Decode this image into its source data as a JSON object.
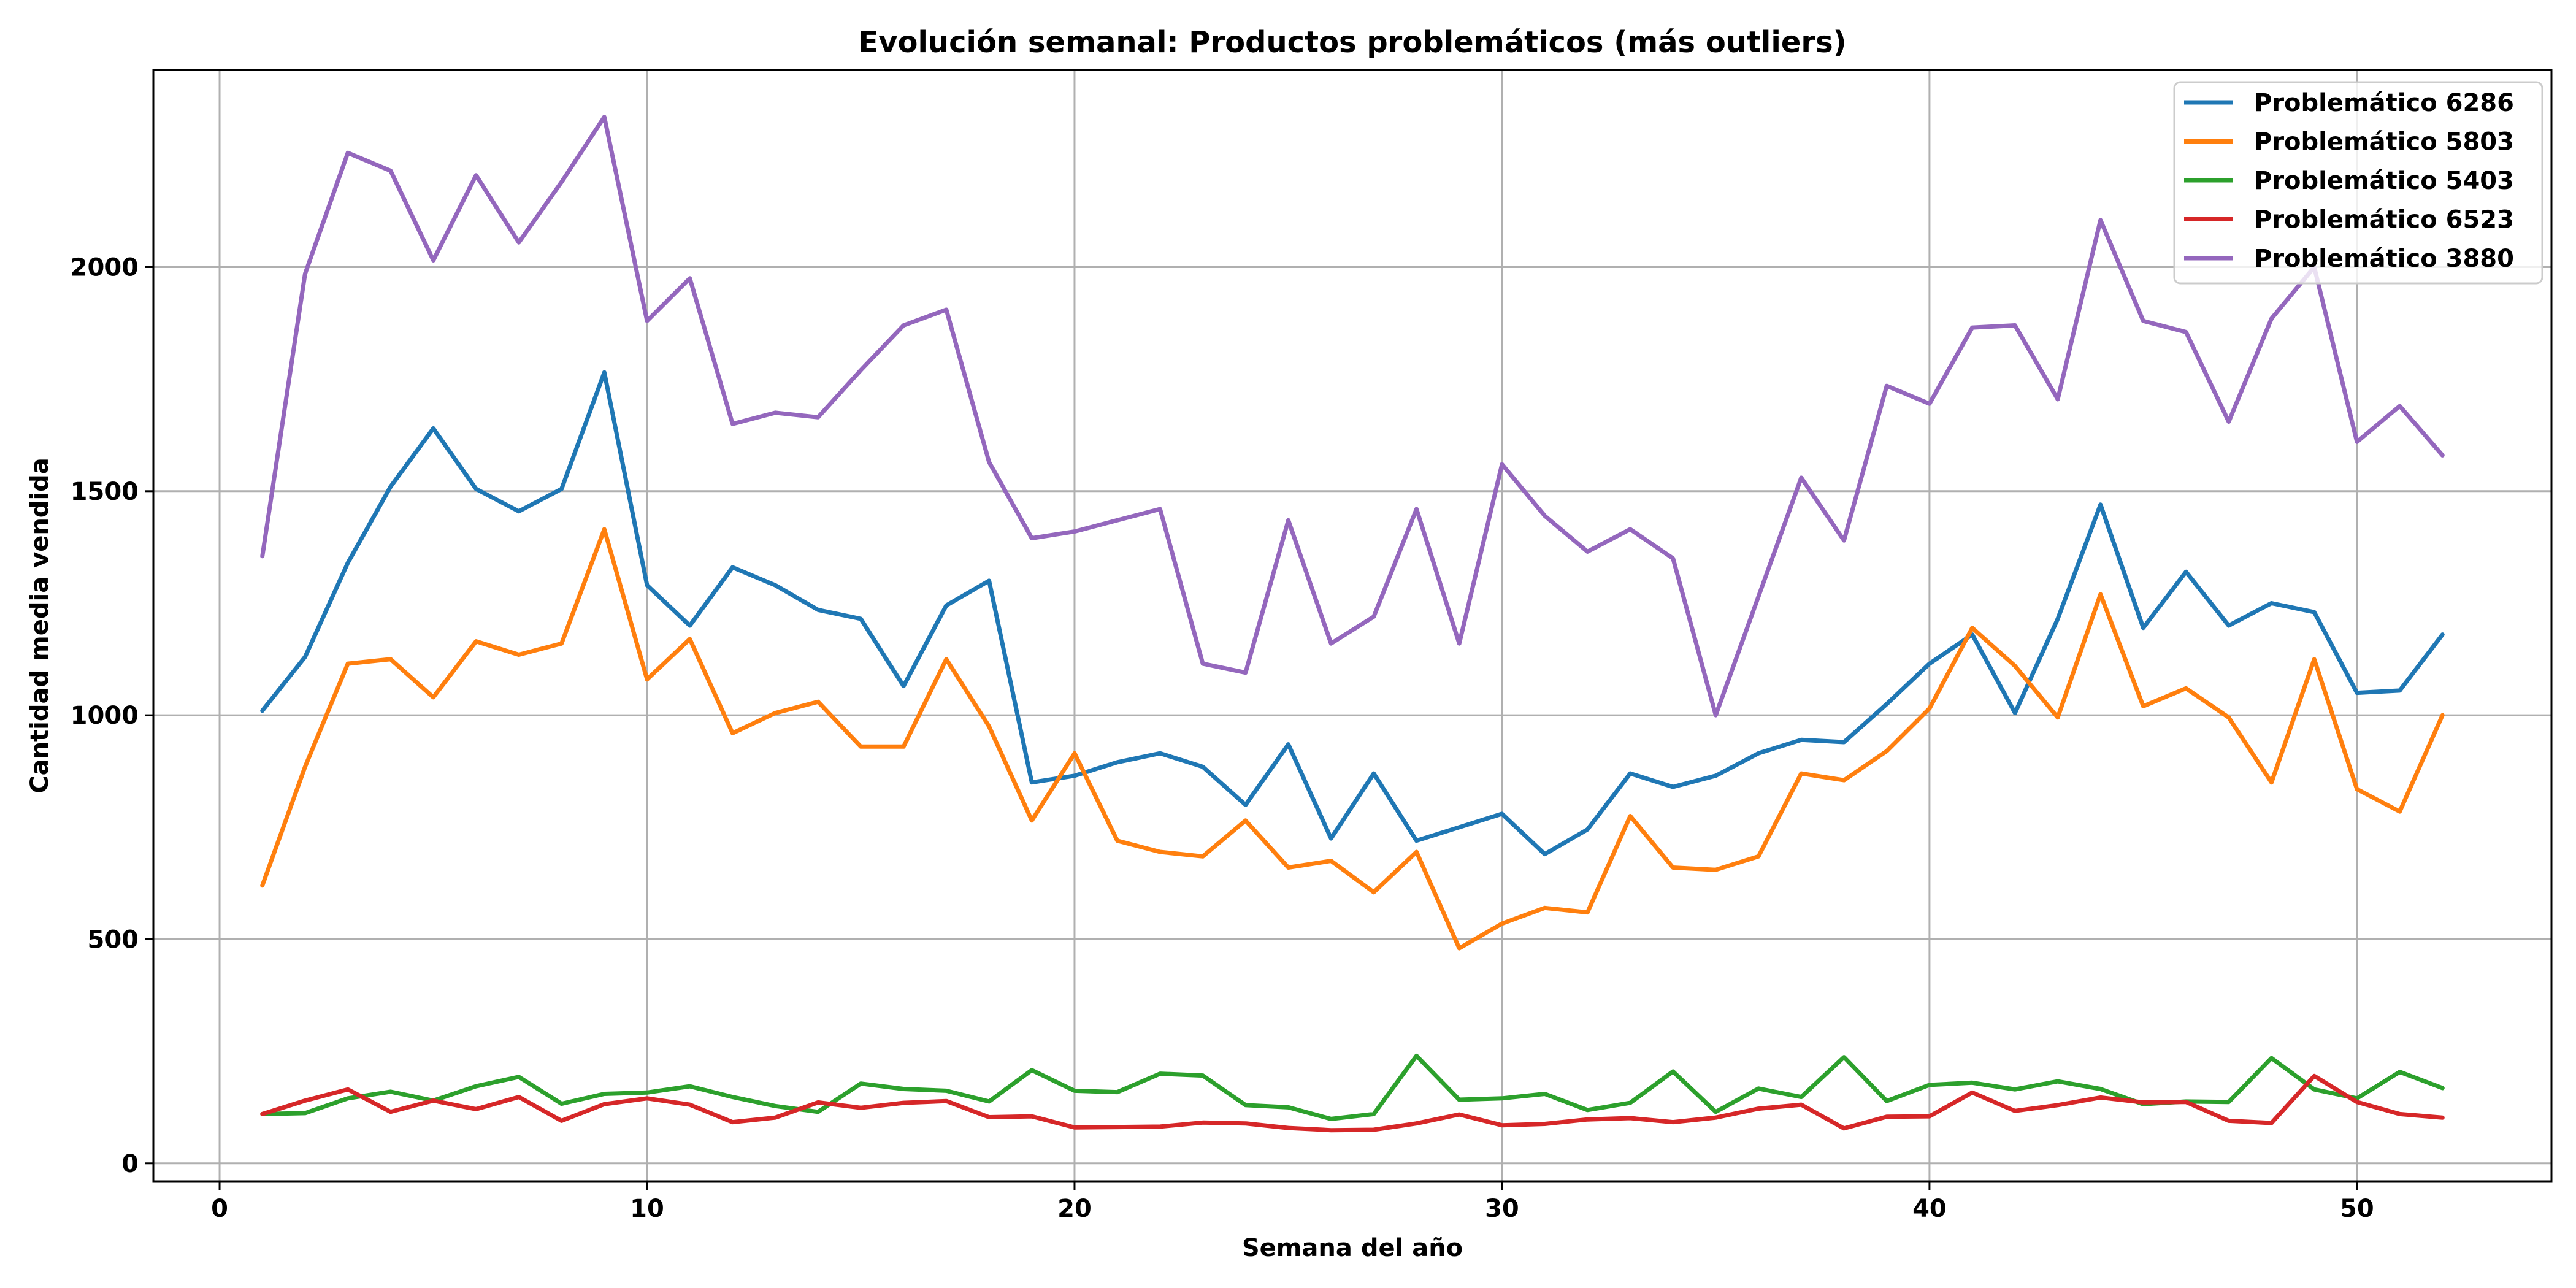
{
  "chart_data": {
    "type": "line",
    "title": "Evolución semanal: Productos problemáticos (más outliers)",
    "xlabel": "Semana del año",
    "ylabel": "Cantidad media vendida",
    "xlim": [
      -1.55,
      54.55
    ],
    "ylim": [
      -40,
      2440
    ],
    "x_ticks": [
      0,
      10,
      20,
      30,
      40,
      50
    ],
    "y_ticks": [
      0,
      500,
      1000,
      1500,
      2000
    ],
    "grid": true,
    "legend_position": "top-right",
    "x": [
      1,
      2,
      3,
      4,
      5,
      6,
      7,
      8,
      9,
      10,
      11,
      12,
      13,
      14,
      15,
      16,
      17,
      18,
      19,
      20,
      21,
      22,
      23,
      24,
      25,
      26,
      27,
      28,
      29,
      30,
      31,
      32,
      33,
      34,
      35,
      36,
      37,
      38,
      39,
      40,
      41,
      42,
      43,
      44,
      45,
      46,
      47,
      48,
      49,
      50,
      51,
      52
    ],
    "series": [
      {
        "name": "Problemático 6286",
        "color": "#1f77b4",
        "values": [
          1010,
          1130,
          1340,
          1510,
          1640,
          1505,
          1455,
          1505,
          1765,
          1290,
          1200,
          1330,
          1290,
          1235,
          1215,
          1065,
          1245,
          1300,
          850,
          865,
          895,
          915,
          885,
          800,
          935,
          725,
          870,
          720,
          750,
          780,
          690,
          745,
          870,
          840,
          865,
          915,
          945,
          940,
          1025,
          1115,
          1180,
          1005,
          1215,
          1470,
          1195,
          1320,
          1200,
          1250,
          1230,
          1050,
          1055,
          1180
        ]
      },
      {
        "name": "Problemático 5803",
        "color": "#ff7f0e",
        "values": [
          620,
          885,
          1115,
          1125,
          1040,
          1165,
          1135,
          1160,
          1415,
          1080,
          1170,
          960,
          1005,
          1030,
          930,
          930,
          1125,
          975,
          765,
          915,
          720,
          695,
          685,
          765,
          660,
          675,
          605,
          695,
          480,
          535,
          570,
          560,
          775,
          660,
          655,
          685,
          870,
          855,
          920,
          1015,
          1195,
          1110,
          995,
          1270,
          1020,
          1060,
          995,
          850,
          1125,
          835,
          785,
          1000
        ]
      },
      {
        "name": "Problemático 5403",
        "color": "#2ca02c",
        "values": [
          110,
          112,
          145,
          160,
          140,
          172,
          193,
          133,
          155,
          158,
          172,
          148,
          128,
          115,
          178,
          166,
          162,
          138,
          208,
          162,
          159,
          200,
          196,
          130,
          125,
          99,
          110,
          240,
          142,
          145,
          155,
          119,
          135,
          205,
          115,
          167,
          148,
          237,
          139,
          175,
          180,
          165,
          183,
          166,
          132,
          138,
          137,
          235,
          165,
          145,
          204,
          168
        ]
      },
      {
        "name": "Problemático 6523",
        "color": "#d62728",
        "values": [
          110,
          140,
          165,
          115,
          140,
          121,
          148,
          95,
          132,
          145,
          131,
          92,
          102,
          136,
          124,
          135,
          139,
          103,
          105,
          80,
          81,
          82,
          91,
          89,
          79,
          74,
          75,
          89,
          109,
          85,
          88,
          98,
          101,
          92,
          102,
          122,
          131,
          78,
          104,
          105,
          158,
          117,
          130,
          147,
          136,
          137,
          95,
          90,
          195,
          137,
          110,
          102
        ]
      },
      {
        "name": "Problemático 3880",
        "color": "#9467bd",
        "values": [
          1355,
          1985,
          2255,
          2215,
          2015,
          2205,
          2055,
          2190,
          2335,
          1880,
          1975,
          1650,
          1675,
          1665,
          1770,
          1870,
          1905,
          1565,
          1395,
          1410,
          1435,
          1460,
          1115,
          1095,
          1435,
          1160,
          1220,
          1460,
          1160,
          1560,
          1445,
          1365,
          1415,
          1350,
          1000,
          1265,
          1530,
          1390,
          1735,
          1695,
          1865,
          1870,
          1705,
          2105,
          1880,
          1855,
          1655,
          1885,
          2000,
          1610,
          1690,
          1580
        ]
      }
    ]
  }
}
